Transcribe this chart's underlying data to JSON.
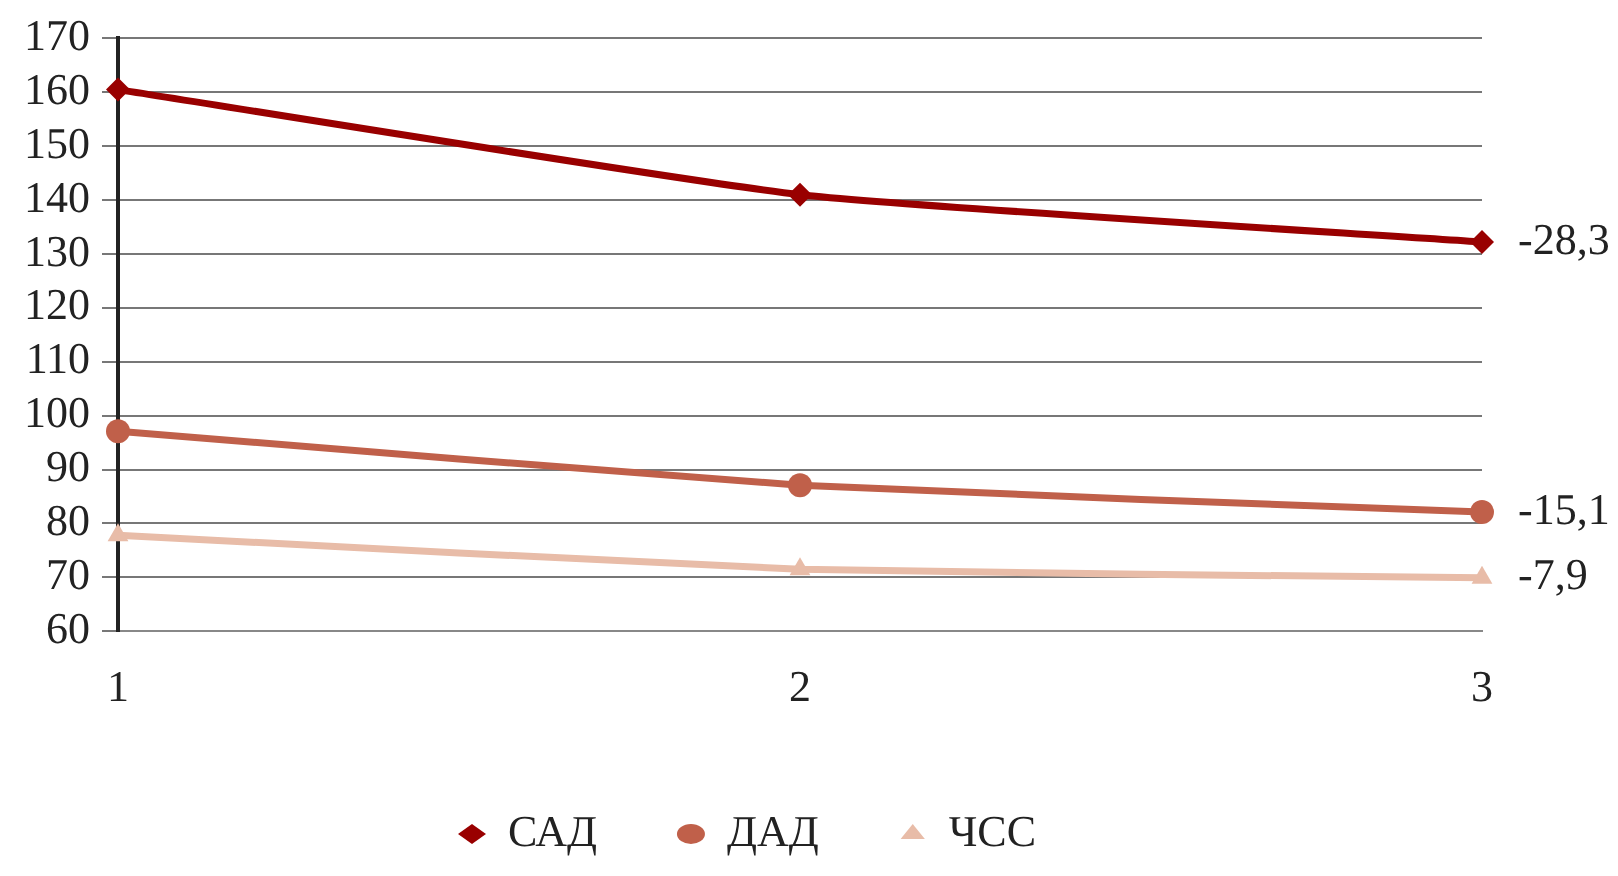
{
  "chart_data": {
    "type": "line",
    "categories": [
      "1",
      "2",
      "3"
    ],
    "series": [
      {
        "name": "САД",
        "color": "#990000",
        "marker": "diamond",
        "values": [
          160.5,
          141.0,
          132.2
        ]
      },
      {
        "name": "ДАД",
        "color": "#c0604a",
        "marker": "circle",
        "values": [
          97.1,
          87.1,
          82.1
        ]
      },
      {
        "name": "ЧСС",
        "color": "#e8bca8",
        "marker": "triangle",
        "values": [
          77.8,
          71.5,
          69.9
        ]
      }
    ],
    "ylim": [
      60,
      170
    ],
    "yticks": [
      60,
      70,
      80,
      90,
      100,
      110,
      120,
      130,
      140,
      150,
      160,
      170
    ],
    "grid": "y",
    "legend": "bottom",
    "line_style": "solid",
    "annotations": [
      {
        "text": "-28,3",
        "x": "3",
        "y": 132.2
      },
      {
        "text": "-15,1",
        "x": "3",
        "y": 82.1
      },
      {
        "text": "-7,9",
        "x": "3",
        "y": 69.9
      }
    ]
  }
}
